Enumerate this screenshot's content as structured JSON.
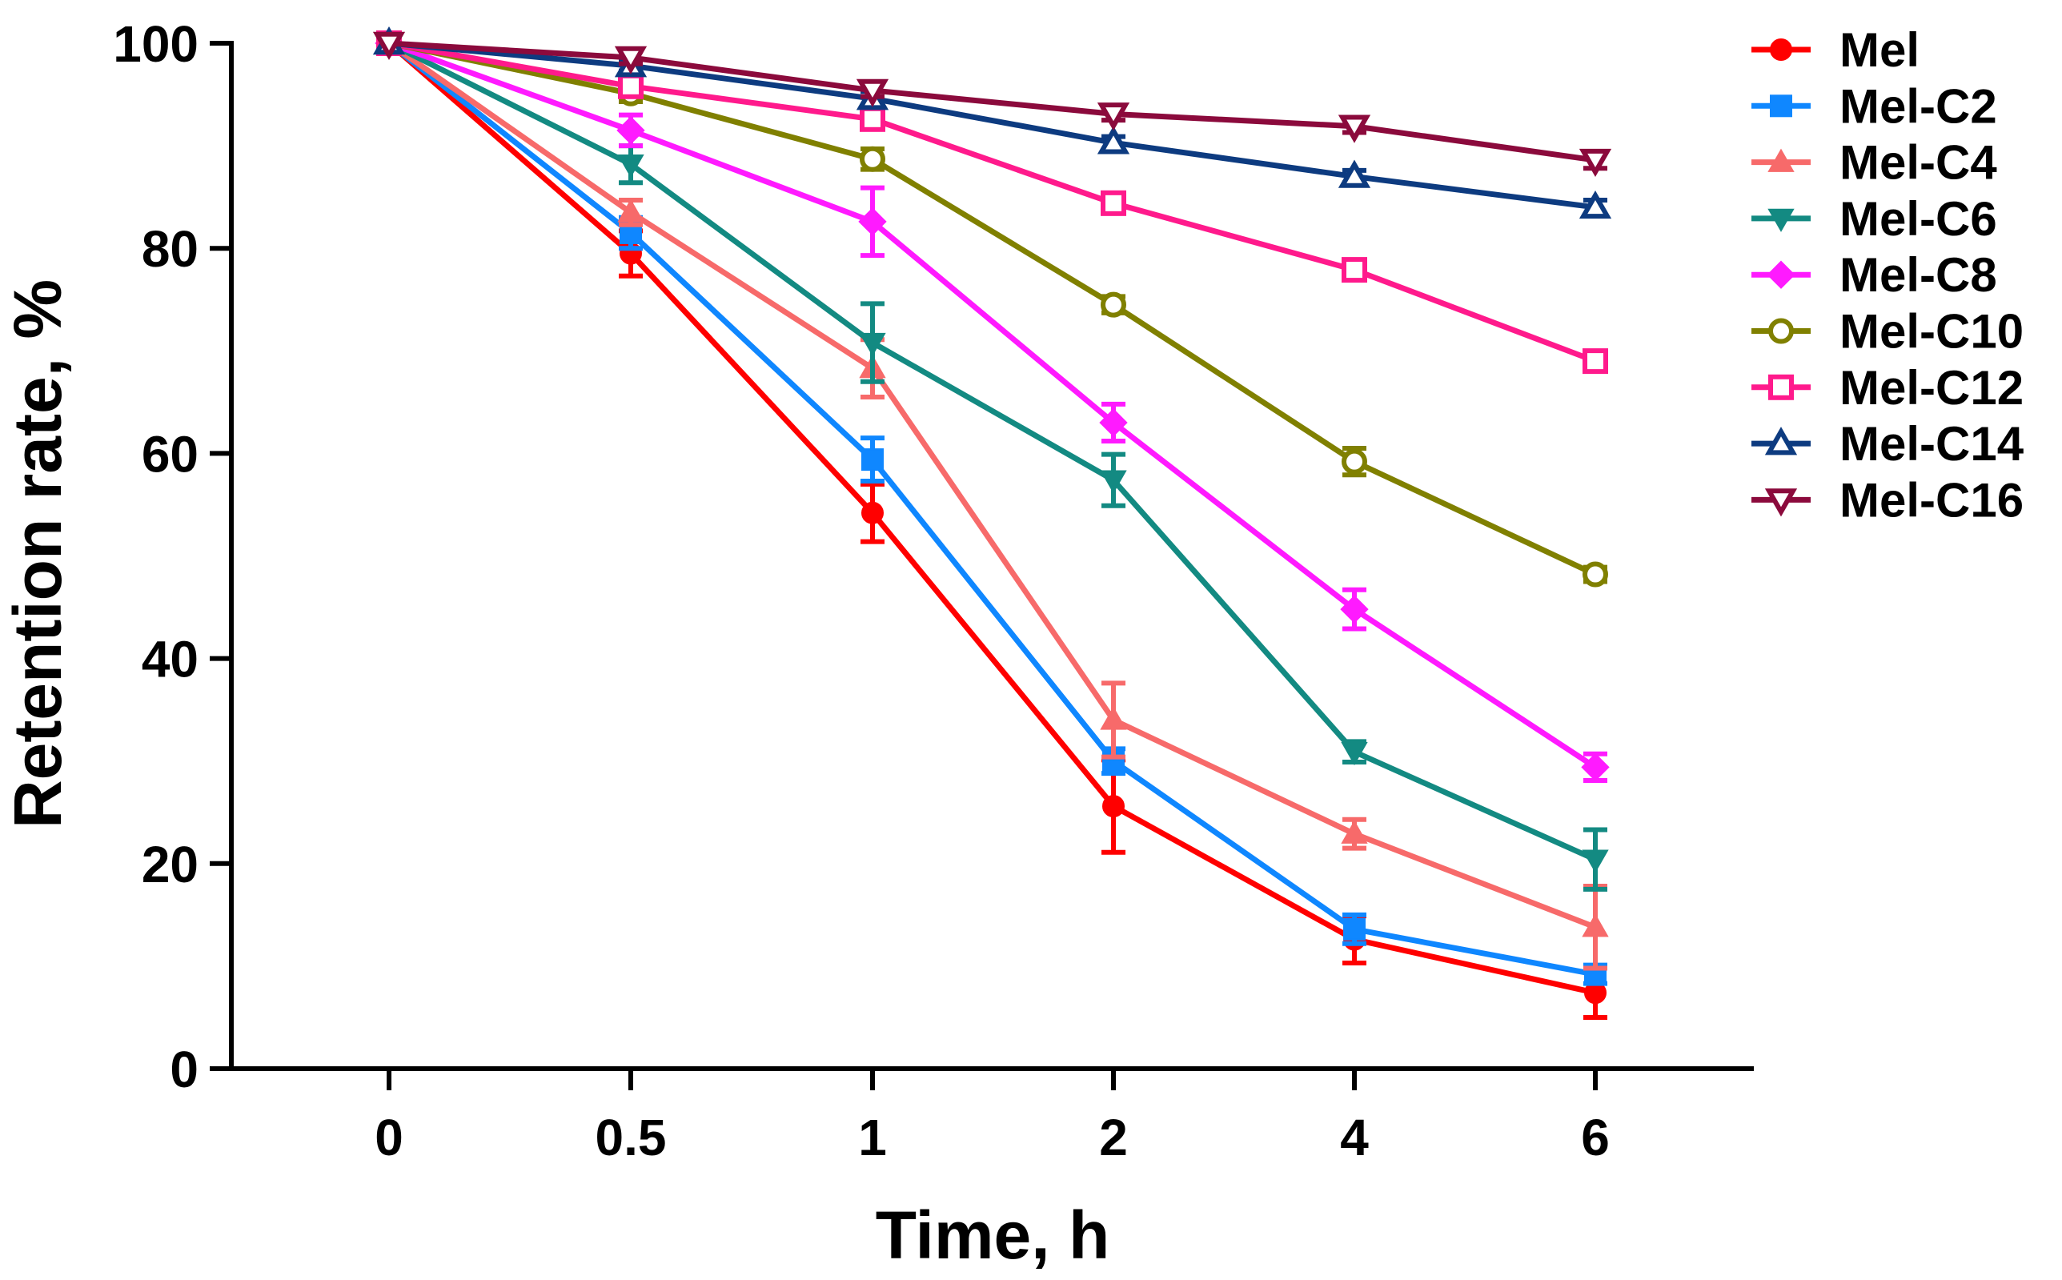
{
  "chart_data": {
    "type": "line",
    "title": "",
    "xlabel": "Time, h",
    "ylabel": "Retention rate, %",
    "categories": [
      "0",
      "0.5",
      "1",
      "2",
      "4",
      "6"
    ],
    "y_ticks": [
      "0",
      "20",
      "40",
      "60",
      "80",
      "100"
    ],
    "ylim": [
      0,
      100
    ],
    "grid": false,
    "legend_position": "right",
    "series": [
      {
        "name": "Mel",
        "color": "#ff0000",
        "marker": "circle-filled",
        "values": [
          100,
          79.5,
          54.2,
          25.6,
          12.6,
          7.4
        ],
        "errors": [
          0,
          2.2,
          2.8,
          4.5,
          2.3,
          2.4
        ]
      },
      {
        "name": "Mel-C2",
        "color": "#0f87ff",
        "marker": "square-filled",
        "values": [
          100,
          81.5,
          59.4,
          30.0,
          13.6,
          9.2
        ],
        "errors": [
          0,
          1.5,
          2.1,
          1.2,
          1.4,
          0.9
        ]
      },
      {
        "name": "Mel-C4",
        "color": "#f76a6a",
        "marker": "triangle-up-filled",
        "values": [
          100,
          83.5,
          68.3,
          34.0,
          22.9,
          13.8
        ],
        "errors": [
          0,
          1.2,
          2.8,
          3.6,
          1.4,
          4.0
        ]
      },
      {
        "name": "Mel-C6",
        "color": "#138a82",
        "marker": "triangle-down-filled",
        "values": [
          100,
          88.2,
          70.8,
          57.4,
          30.9,
          20.4
        ],
        "errors": [
          0,
          1.8,
          3.8,
          2.5,
          1.0,
          2.9
        ]
      },
      {
        "name": "Mel-C8",
        "color": "#ff1aff",
        "marker": "diamond-filled",
        "values": [
          100,
          91.5,
          82.6,
          63.0,
          44.8,
          29.4
        ],
        "errors": [
          0,
          1.5,
          3.3,
          1.8,
          1.9,
          1.3
        ]
      },
      {
        "name": "Mel-C10",
        "color": "#808000",
        "marker": "circle-open",
        "values": [
          100,
          95.1,
          88.7,
          74.5,
          59.2,
          48.2
        ],
        "errors": [
          0,
          0.8,
          1.0,
          0.8,
          1.3,
          0.7
        ]
      },
      {
        "name": "Mel-C12",
        "color": "#ff1a8c",
        "marker": "square-open",
        "values": [
          100,
          95.8,
          92.6,
          84.4,
          77.9,
          69.0
        ],
        "errors": [
          0,
          0.5,
          0.8,
          0.9,
          0.8,
          0.8
        ]
      },
      {
        "name": "Mel-C14",
        "color": "#0d3b80",
        "marker": "triangle-up-open",
        "values": [
          100,
          97.8,
          94.6,
          90.3,
          87.0,
          84.0
        ],
        "errors": [
          0,
          0.5,
          0.7,
          0.6,
          0.6,
          0.7
        ]
      },
      {
        "name": "Mel-C16",
        "color": "#8b0a3c",
        "marker": "triangle-down-open",
        "values": [
          100,
          98.6,
          95.4,
          93.1,
          91.9,
          88.6
        ],
        "errors": [
          0,
          0.6,
          0.6,
          0.6,
          0.6,
          0.8
        ]
      }
    ]
  }
}
